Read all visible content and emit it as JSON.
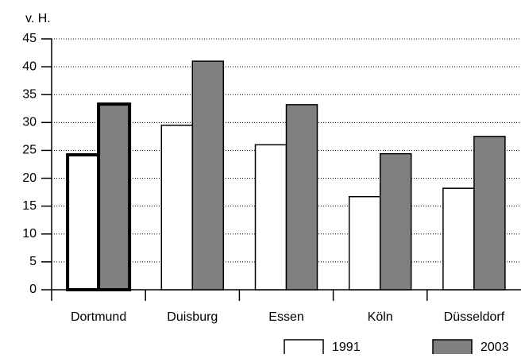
{
  "chart_data": {
    "type": "bar",
    "y_label": "v. H.",
    "categories": [
      "Dortmund",
      "Duisburg",
      "Essen",
      "Köln",
      "Düsseldorf"
    ],
    "series": [
      {
        "name": "1991",
        "color": "#ffffff",
        "values": [
          24.2,
          29.5,
          26,
          16.7,
          18.2
        ]
      },
      {
        "name": "2003",
        "color": "#808080",
        "values": [
          33.3,
          41,
          33.2,
          24.4,
          27.5
        ]
      }
    ],
    "ylim": [
      0,
      45
    ],
    "yticks": [
      0,
      5,
      10,
      15,
      20,
      25,
      30,
      35,
      40,
      45
    ],
    "grid": true,
    "grid_style": "dotted",
    "legend": "bottom-right",
    "highlight_index": 0
  }
}
